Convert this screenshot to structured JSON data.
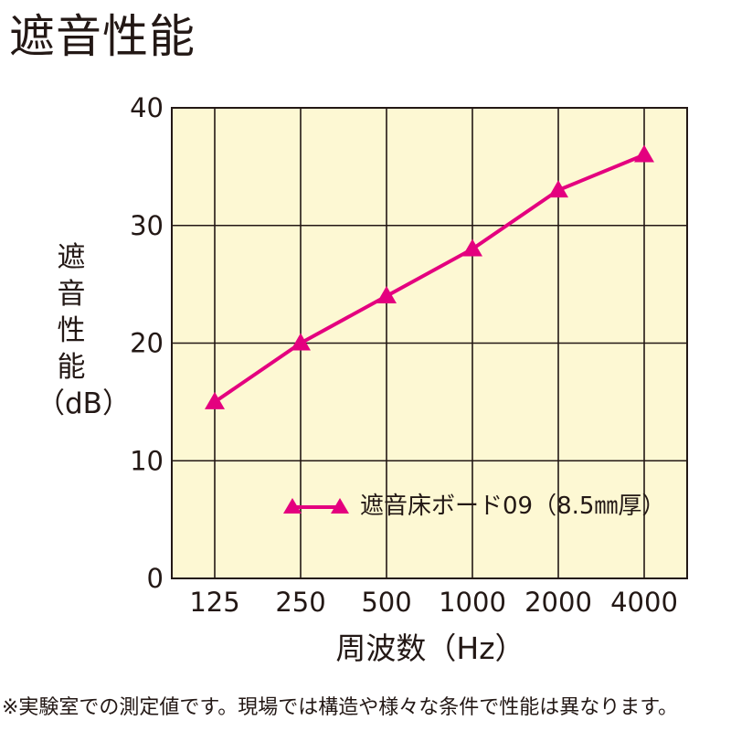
{
  "title": "遮音性能",
  "note": "※実験室での測定値です。現場では構造や様々な条件で性能は異なります。",
  "chart_data": {
    "type": "line",
    "title": "",
    "xlabel": "周波数（Hz）",
    "ylabel_chars": [
      "遮",
      "音",
      "性",
      "能",
      "（dB）"
    ],
    "categories": [
      "125",
      "250",
      "500",
      "1000",
      "2000",
      "4000"
    ],
    "y_ticks": [
      "0",
      "10",
      "20",
      "30",
      "40"
    ],
    "ylim": [
      0,
      40
    ],
    "grid": true,
    "legend_position": "bottom-right",
    "series": [
      {
        "name": "遮音床ボード09（8.5㎜厚）",
        "values": [
          15,
          20,
          24,
          28,
          33,
          36
        ],
        "color": "#e4007f",
        "marker": "triangle"
      }
    ],
    "plot_background": "#fdf8d3",
    "grid_color": "#231815"
  }
}
